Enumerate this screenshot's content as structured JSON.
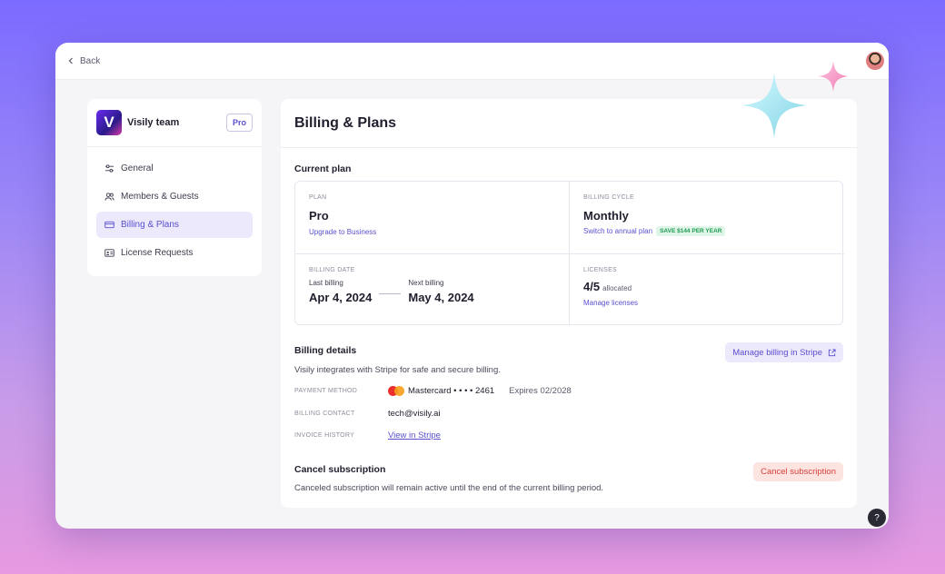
{
  "topbar": {
    "back_label": "Back"
  },
  "sidebar": {
    "team_name": "Visily team",
    "team_logo_letter": "V",
    "plan_badge": "Pro",
    "items": [
      {
        "label": "General",
        "icon": "sliders-icon",
        "active": false
      },
      {
        "label": "Members & Guests",
        "icon": "users-icon",
        "active": false
      },
      {
        "label": "Billing & Plans",
        "icon": "credit-card-icon",
        "active": true
      },
      {
        "label": "License Requests",
        "icon": "id-card-icon",
        "active": false
      }
    ]
  },
  "main": {
    "title": "Billing & Plans",
    "current_plan": {
      "heading": "Current plan",
      "plan_caption": "PLAN",
      "plan_value": "Pro",
      "plan_link": "Upgrade to Business",
      "cycle_caption": "BILLING CYCLE",
      "cycle_value": "Monthly",
      "cycle_link": "Switch to annual plan",
      "save_badge": "SAVE $144 PER YEAR",
      "date_caption": "BILLING DATE",
      "last_label": "Last billing",
      "last_value": "Apr 4, 2024",
      "next_label": "Next billing",
      "next_value": "May 4, 2024",
      "licenses_caption": "LICENSES",
      "licenses_value": "4/5",
      "licenses_suffix": "allocated",
      "licenses_link": "Manage licenses"
    },
    "billing_details": {
      "heading": "Billing details",
      "description": "Visily integrates with Stripe for safe and secure billing.",
      "stripe_button": "Manage billing in Stripe",
      "payment_key": "PAYMENT METHOD",
      "payment_value": "Mastercard • • • • 2461",
      "payment_expires": "Expires 02/2028",
      "contact_key": "BILLING CONTACT",
      "contact_value": "tech@visily.ai",
      "invoice_key": "INVOICE HISTORY",
      "invoice_link": "View in Stripe"
    },
    "cancel": {
      "heading": "Cancel subscription",
      "description": "Canceled subscription will remain active until the end of the current billing period.",
      "button": "Cancel subscription"
    }
  },
  "help_label": "?",
  "colors": {
    "accent": "#5a4fcf",
    "danger": "#d8413a",
    "success": "#1f9b55"
  }
}
